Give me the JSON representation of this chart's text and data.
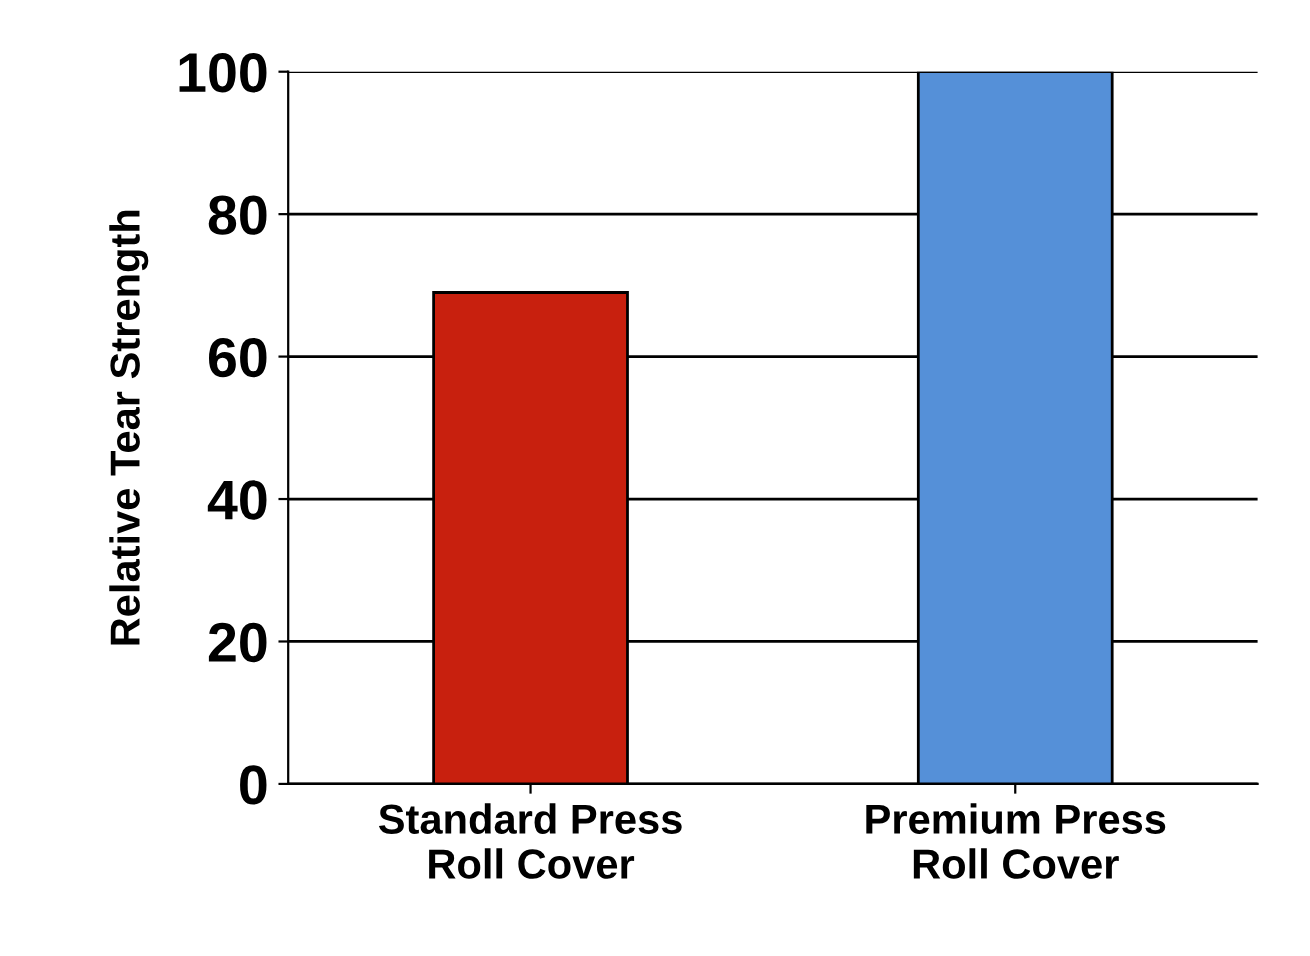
{
  "chart_data": {
    "type": "bar",
    "ylabel": "Relative Tear Strength",
    "categories": [
      "Standard Press\nRoll Cover",
      "Premium Press\nRoll Cover"
    ],
    "values": [
      69,
      100
    ],
    "colors": [
      "#c8200e",
      "#5590d8"
    ],
    "ylim": [
      0,
      100
    ],
    "yticks": [
      0,
      20,
      40,
      60,
      80,
      100
    ],
    "grid": "y"
  }
}
